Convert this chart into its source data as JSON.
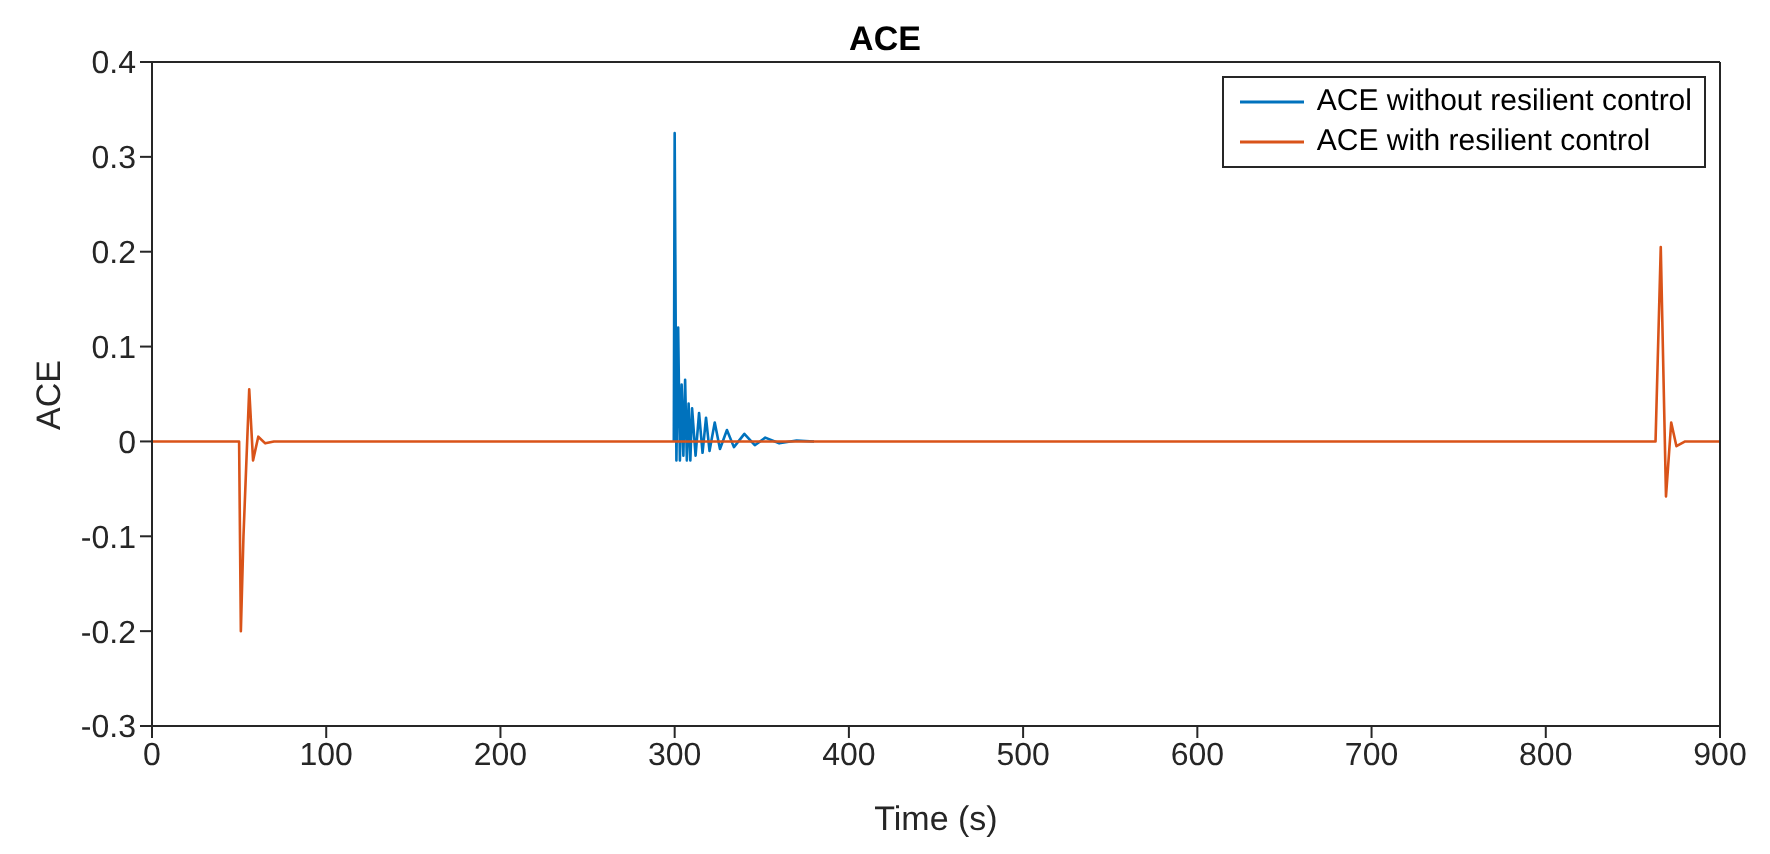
{
  "chart_data": {
    "type": "line",
    "title": "ACE",
    "xlabel": "Time (s)",
    "ylabel": "ACE",
    "xlim": [
      0,
      900
    ],
    "xticks": [
      0,
      100,
      200,
      300,
      400,
      500,
      600,
      700,
      800,
      900
    ],
    "ylim": [
      -0.3,
      0.4
    ],
    "yticks": [
      -0.3,
      -0.2,
      -0.1,
      0,
      0.1,
      0.2,
      0.3,
      0.4
    ],
    "grid": false,
    "legend": "top right",
    "marker": "none",
    "line_style": "solid",
    "series": [
      {
        "name": "ACE without resilient control",
        "color": "#0072bd",
        "x": [
          299.5,
          300,
          301,
          302,
          303,
          304,
          305,
          306,
          307,
          308,
          309,
          310,
          312,
          314,
          316,
          318,
          320,
          323,
          326,
          330,
          334,
          340,
          346,
          352,
          360,
          370,
          380
        ],
        "values": [
          0,
          0.325,
          -0.02,
          0.12,
          -0.02,
          0.06,
          -0.015,
          0.065,
          -0.02,
          0.04,
          -0.02,
          0.035,
          -0.015,
          0.03,
          -0.012,
          0.025,
          -0.01,
          0.02,
          -0.008,
          0.012,
          -0.006,
          0.008,
          -0.004,
          0.004,
          -0.002,
          0.001,
          0
        ]
      },
      {
        "name": "ACE with resilient control",
        "color": "#d95319",
        "x": [
          0,
          50,
          51,
          52.5,
          55.8,
          58,
          61,
          65,
          70,
          863,
          866,
          869,
          872,
          875,
          880,
          900
        ],
        "values": [
          0,
          0,
          -0.2,
          -0.1,
          0.055,
          -0.02,
          0.005,
          -0.002,
          0,
          0,
          0.205,
          -0.058,
          0.02,
          -0.005,
          0,
          0
        ]
      }
    ]
  }
}
